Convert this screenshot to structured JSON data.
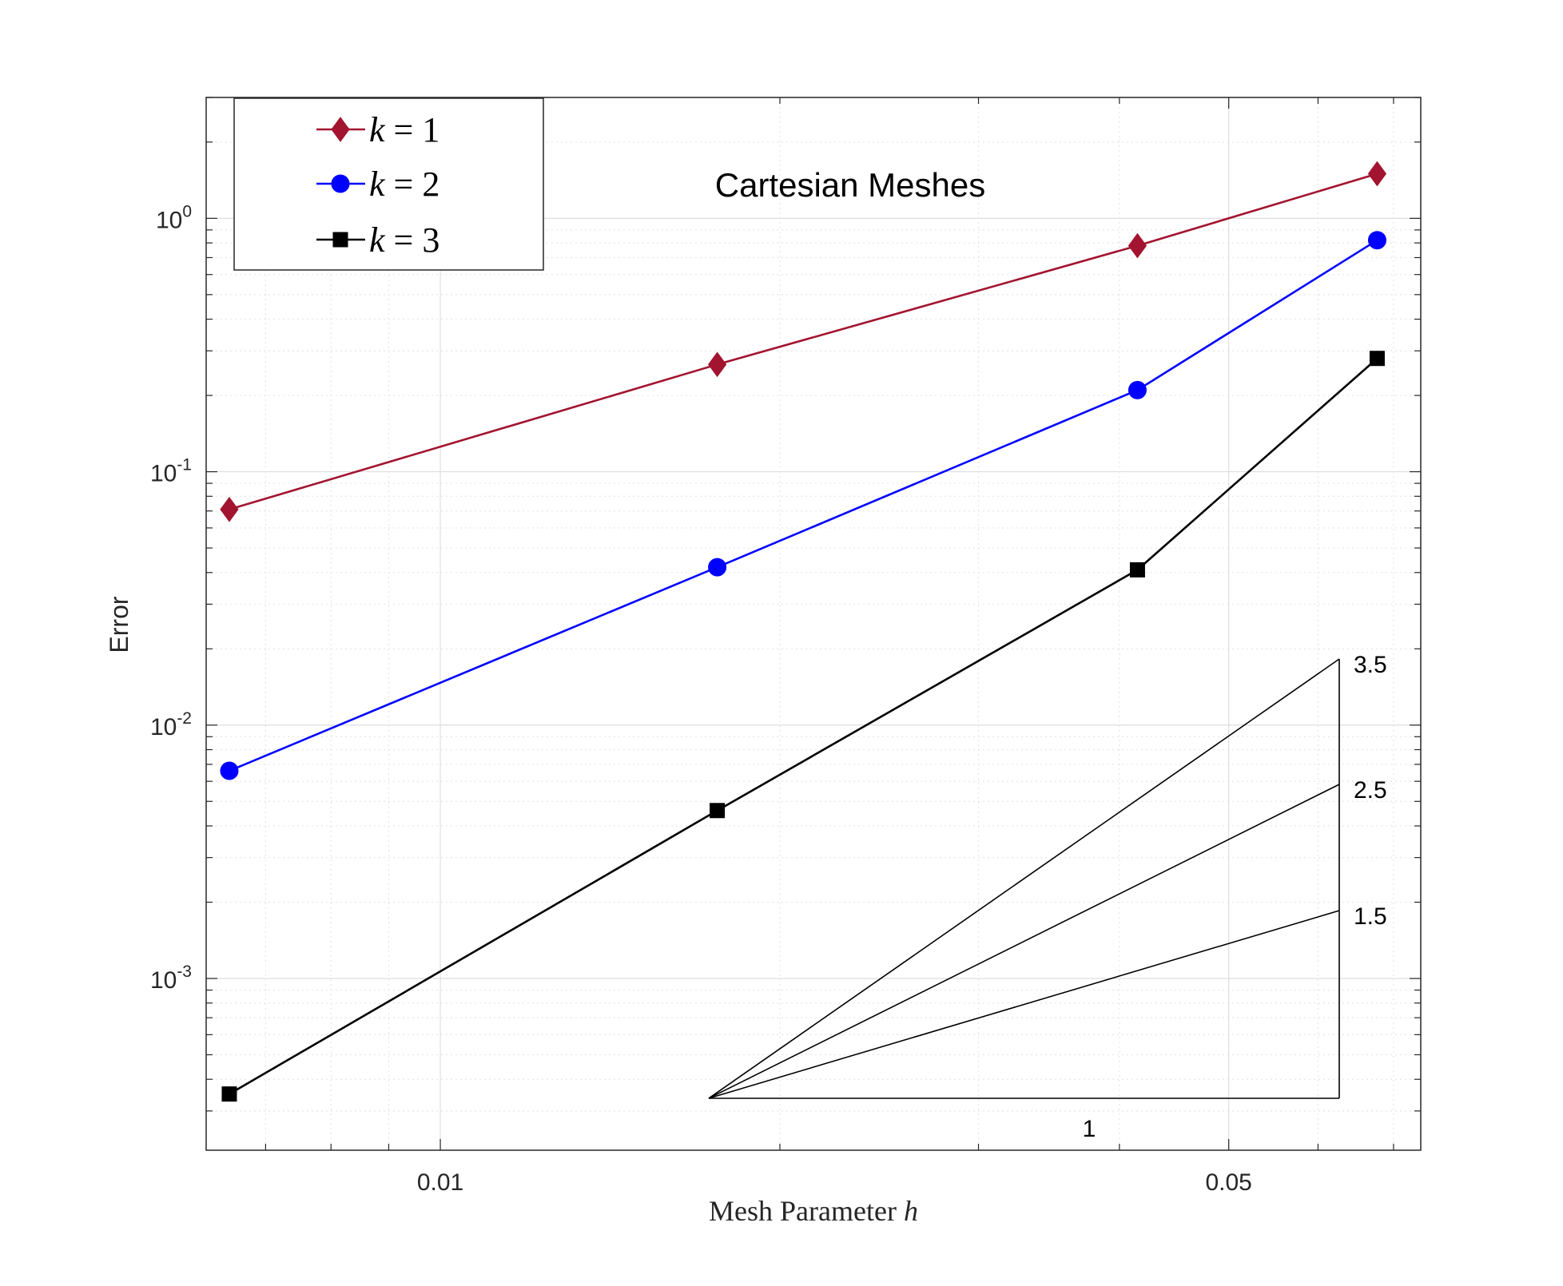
{
  "chart_data": {
    "type": "line",
    "title": "Cartesian Meshes",
    "xlabel": "Mesh Parameter h",
    "ylabel": "Error",
    "xscale": "log",
    "yscale": "log",
    "xlim": [
      0.0062,
      0.074
    ],
    "ylim": [
      0.00021,
      3.0
    ],
    "grid": true,
    "legend_position": "top-left",
    "x_ticks": [
      {
        "value": 0.01,
        "label": "0.01"
      },
      {
        "value": 0.05,
        "label": "0.05"
      }
    ],
    "y_ticks": [
      {
        "value": 1,
        "base": "10",
        "exp": "0"
      },
      {
        "value": 0.1,
        "base": "10",
        "exp": "-1"
      },
      {
        "value": 0.01,
        "base": "10",
        "exp": "-2"
      },
      {
        "value": 0.001,
        "base": "10",
        "exp": "-3"
      }
    ],
    "x": [
      0.0065,
      0.0176,
      0.0415,
      0.0677
    ],
    "series": [
      {
        "name": "k = 1",
        "name_var": "k",
        "name_val": "= 1",
        "color": "#A2142F",
        "marker": "diamond",
        "values": [
          0.071,
          0.265,
          0.78,
          1.5
        ]
      },
      {
        "name": "k = 2",
        "name_var": "k",
        "name_val": "= 2",
        "color": "#0000FF",
        "marker": "circle",
        "values": [
          0.0066,
          0.042,
          0.21,
          0.82
        ]
      },
      {
        "name": "k = 3",
        "name_var": "k",
        "name_val": "= 3",
        "color": "#000000",
        "marker": "square",
        "values": [
          0.00035,
          0.0046,
          0.041,
          0.28
        ]
      }
    ],
    "slope_triangle": {
      "base_label": "1",
      "slopes": [
        {
          "label": "3.5",
          "value": 3.5
        },
        {
          "label": "2.5",
          "value": 2.5
        },
        {
          "label": "1.5",
          "value": 1.5
        }
      ]
    }
  }
}
